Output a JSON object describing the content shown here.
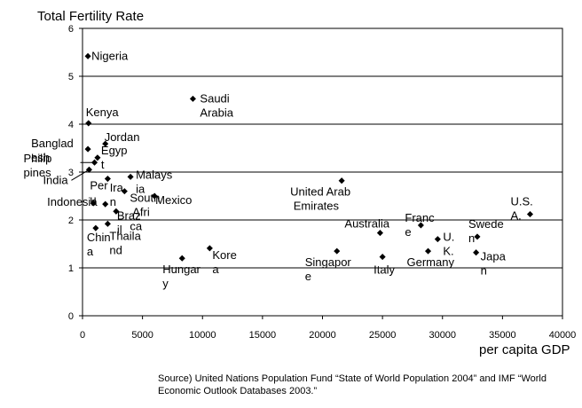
{
  "chart_data": {
    "type": "scatter",
    "title": "Total Fertility Rate",
    "xlabel": "per capita GDP",
    "ylabel": "",
    "xlim": [
      0,
      40000
    ],
    "ylim": [
      0,
      6
    ],
    "xticks": [
      "0",
      "5000",
      "10000",
      "15000",
      "20000",
      "25000",
      "30000",
      "35000",
      "40000"
    ],
    "yticks": [
      "0",
      "1",
      "2",
      "3",
      "4",
      "5",
      "6"
    ],
    "grid": "horizontal",
    "source": "Source) United Nations Population Fund “State of World Population 2004” and IMF “World Economic Outlook Databases 2003.”",
    "points": [
      {
        "label": "Nigeria",
        "x": 450,
        "y": 5.42
      },
      {
        "label": "Saudi Arabia",
        "x": 9200,
        "y": 4.53
      },
      {
        "label": "Kenya",
        "x": 500,
        "y": 4.02
      },
      {
        "label": "Bangladesh",
        "x": 450,
        "y": 3.48
      },
      {
        "label": "Jordan",
        "x": 1900,
        "y": 3.59
      },
      {
        "label": "Egypt",
        "x": 1250,
        "y": 3.3
      },
      {
        "label": "Philippines",
        "x": 1000,
        "y": 3.2
      },
      {
        "label": "India",
        "x": 550,
        "y": 3.05
      },
      {
        "label": "Peru",
        "x": 2100,
        "y": 2.86
      },
      {
        "label": "Malaysia",
        "x": 4000,
        "y": 2.9
      },
      {
        "label": "Iran",
        "x": 1900,
        "y": 2.33
      },
      {
        "label": "Indonesia",
        "x": 900,
        "y": 2.35
      },
      {
        "label": "South Africa",
        "x": 3500,
        "y": 2.6
      },
      {
        "label": "Mexico",
        "x": 6000,
        "y": 2.5
      },
      {
        "label": "Brazil",
        "x": 2800,
        "y": 2.18
      },
      {
        "label": "China",
        "x": 1100,
        "y": 1.83
      },
      {
        "label": "Thailand",
        "x": 2100,
        "y": 1.92
      },
      {
        "label": "Hungary",
        "x": 8300,
        "y": 1.2
      },
      {
        "label": "Korea",
        "x": 10600,
        "y": 1.41
      },
      {
        "label": "United Arab Emirates",
        "x": 21600,
        "y": 2.82
      },
      {
        "label": "Singapore",
        "x": 21200,
        "y": 1.35
      },
      {
        "label": "Australia",
        "x": 24800,
        "y": 1.73
      },
      {
        "label": "Italy",
        "x": 25000,
        "y": 1.23
      },
      {
        "label": "France",
        "x": 28200,
        "y": 1.89
      },
      {
        "label": "U.K.",
        "x": 29600,
        "y": 1.6
      },
      {
        "label": "Germany",
        "x": 28800,
        "y": 1.35
      },
      {
        "label": "Sweden",
        "x": 32900,
        "y": 1.65
      },
      {
        "label": "Japan",
        "x": 32800,
        "y": 1.32
      },
      {
        "label": "U.S.A.",
        "x": 37300,
        "y": 2.12
      }
    ]
  }
}
